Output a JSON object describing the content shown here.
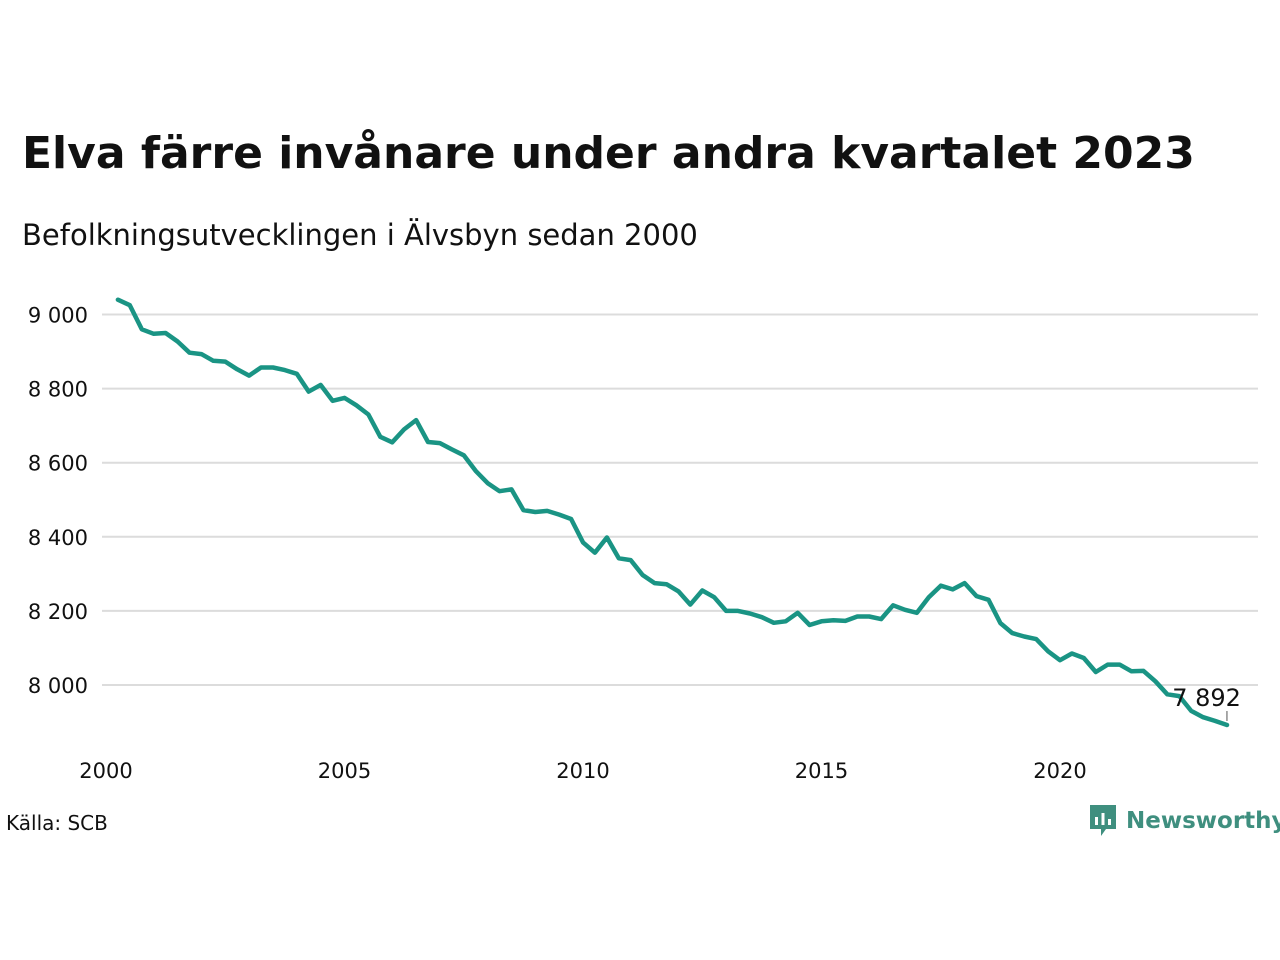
{
  "title": "Elva färre invånare under andra kvartalet 2023",
  "subtitle": "Befolkningsutvecklingen i Älvsbyn sedan 2000",
  "source": "Källa: SCB",
  "brand": {
    "name": "Newsworthy",
    "icon": "newsworthy-logo-icon",
    "color": "#3f8f7f"
  },
  "colors": {
    "line": "#1a9484",
    "grid": "#dcdcdc"
  },
  "chart_data": {
    "type": "line",
    "title": "Elva färre invånare under andra kvartalet 2023",
    "subtitle": "Befolkningsutvecklingen i Älvsbyn sedan 2000",
    "xlim": [
      2000,
      2024
    ],
    "ylim": [
      7850,
      9050
    ],
    "grid": true,
    "x_ticks": [
      {
        "value": 2000,
        "label": "2000"
      },
      {
        "value": 2005,
        "label": "2005"
      },
      {
        "value": 2010,
        "label": "2010"
      },
      {
        "value": 2015,
        "label": "2015"
      },
      {
        "value": 2020,
        "label": "2020"
      }
    ],
    "y_ticks": [
      {
        "value": 8000,
        "label": "8 000"
      },
      {
        "value": 8200,
        "label": "8 200"
      },
      {
        "value": 8400,
        "label": "8 400"
      },
      {
        "value": 8600,
        "label": "8 600"
      },
      {
        "value": 8800,
        "label": "8 800"
      },
      {
        "value": 9000,
        "label": "9 000"
      }
    ],
    "series": [
      {
        "x": [
          2000.25,
          2000.5,
          2000.75,
          2001.0,
          2001.25,
          2001.5,
          2001.75,
          2002.0,
          2002.25,
          2002.5,
          2002.75,
          2003.0,
          2003.25,
          2003.5,
          2003.75,
          2004.0,
          2004.25,
          2004.5,
          2004.75,
          2005.0,
          2005.25,
          2005.5,
          2005.75,
          2006.0,
          2006.25,
          2006.5,
          2006.75,
          2007.0,
          2007.25,
          2007.5,
          2007.75,
          2008.0,
          2008.25,
          2008.5,
          2008.75,
          2009.0,
          2009.25,
          2009.5,
          2009.75,
          2010.0,
          2010.25,
          2010.5,
          2010.75,
          2011.0,
          2011.25,
          2011.5,
          2011.75,
          2012.0,
          2012.25,
          2012.5,
          2012.75,
          2013.0,
          2013.25,
          2013.5,
          2013.75,
          2014.0,
          2014.25,
          2014.5,
          2014.75,
          2015.0,
          2015.25,
          2015.5,
          2015.75,
          2016.0,
          2016.25,
          2016.5,
          2016.75,
          2017.0,
          2017.25,
          2017.5,
          2017.75,
          2018.0,
          2018.25,
          2018.5,
          2018.75,
          2019.0,
          2019.25,
          2019.5,
          2019.75,
          2020.0,
          2020.25,
          2020.5,
          2020.75,
          2021.0,
          2021.25,
          2021.5,
          2021.75,
          2022.0,
          2022.25,
          2022.5,
          2022.75,
          2023.0,
          2023.25,
          2023.5
        ],
        "values": [
          9040,
          9025,
          8960,
          8948,
          8950,
          8927,
          8897,
          8893,
          8875,
          8873,
          8852,
          8835,
          8857,
          8857,
          8850,
          8840,
          8792,
          8810,
          8767,
          8775,
          8755,
          8730,
          8670,
          8655,
          8690,
          8715,
          8656,
          8653,
          8636,
          8620,
          8578,
          8545,
          8523,
          8528,
          8472,
          8467,
          8470,
          8460,
          8448,
          8385,
          8357,
          8398,
          8342,
          8337,
          8297,
          8275,
          8272,
          8253,
          8217,
          8255,
          8237,
          8200,
          8200,
          8193,
          8183,
          8168,
          8172,
          8195,
          8162,
          8172,
          8175,
          8173,
          8185,
          8185,
          8178,
          8215,
          8203,
          8195,
          8237,
          8268,
          8258,
          8275,
          8240,
          8230,
          8167,
          8140,
          8131,
          8124,
          8091,
          8067,
          8085,
          8073,
          8035,
          8055,
          8055,
          8037,
          8038,
          8010,
          7975,
          7970,
          7930,
          7913,
          7903,
          7892
        ]
      }
    ],
    "end_label": "7 892"
  }
}
